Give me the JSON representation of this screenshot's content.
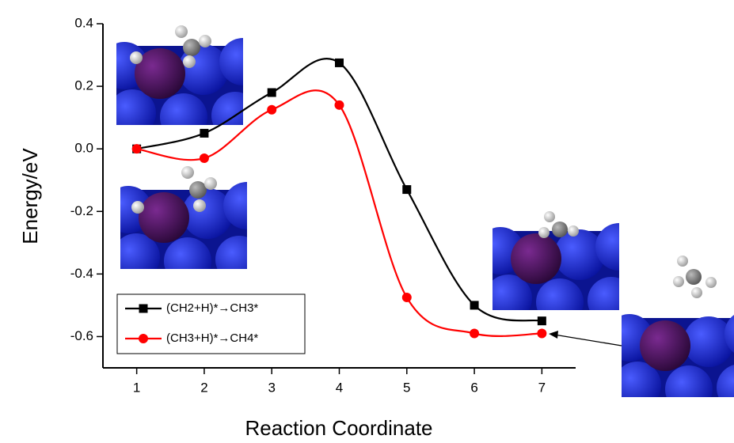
{
  "chart_data": {
    "type": "line",
    "x_label": "Reaction Coordinate",
    "y_label": "Energy/eV",
    "x": [
      1,
      2,
      3,
      4,
      5,
      6,
      7
    ],
    "xlim": [
      0.5,
      7.5
    ],
    "xticks": [
      1,
      2,
      3,
      4,
      5,
      6,
      7
    ],
    "ylim": [
      -0.7,
      0.4
    ],
    "yticks": [
      -0.6,
      -0.4,
      -0.2,
      {
        "value": 0,
        "label": "0.0"
      },
      0.2,
      0.4
    ],
    "legend": "lower left",
    "series": [
      {
        "name": "(CH2+H)*→CH3*",
        "color": "#000000",
        "marker": "square",
        "values": [
          0,
          0.05,
          0.18,
          0.275,
          -0.13,
          -0.5,
          -0.55
        ]
      },
      {
        "name": "(CH3+H)*→CH4*",
        "color": "#ff0000",
        "marker": "circle",
        "values": [
          0,
          -0.03,
          0.125,
          0.14,
          -0.475,
          -0.59,
          -0.59
        ]
      }
    ]
  }
}
